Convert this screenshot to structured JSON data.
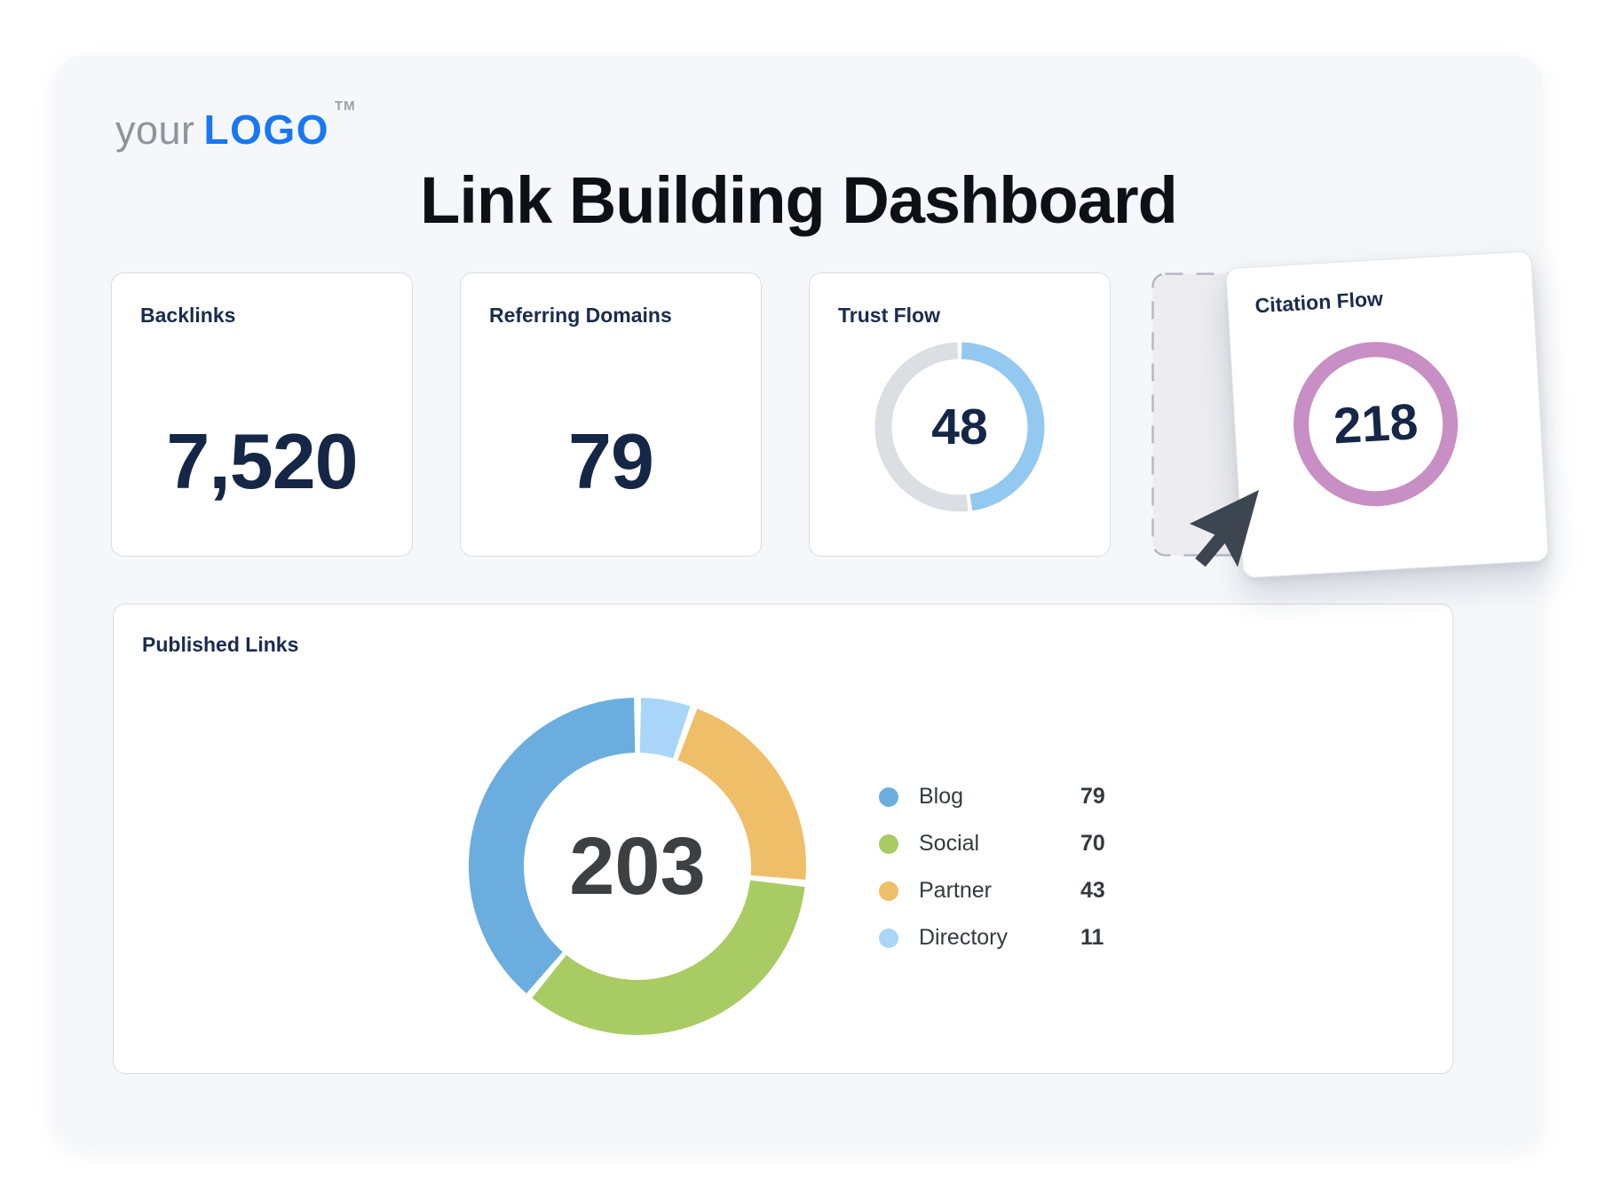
{
  "logo": {
    "prefix": "your",
    "name": "LOGO",
    "trademark": "TM"
  },
  "header": {
    "title": "Link Building Dashboard"
  },
  "stats": {
    "backlinks": {
      "label": "Backlinks",
      "value": "7,520"
    },
    "referring": {
      "label": "Referring Domains",
      "value": "79"
    },
    "trust": {
      "label": "Trust Flow",
      "value": 48,
      "max": 100,
      "arc_color": "#93c8f1",
      "track_color": "#dbdee3"
    },
    "citation": {
      "label": "Citation Flow",
      "value": "218",
      "ring_color": "#c78fc5"
    }
  },
  "published": {
    "label": "Published Links",
    "total": "203",
    "chart_data": {
      "type": "pie",
      "title": "Published Links",
      "center_total": 203,
      "legend_position": "right",
      "series": [
        {
          "name": "Blog",
          "value": 79,
          "color": "#6badde"
        },
        {
          "name": "Social",
          "value": 70,
          "color": "#a9cb64"
        },
        {
          "name": "Partner",
          "value": 43,
          "color": "#efbe68"
        },
        {
          "name": "Directory",
          "value": 11,
          "color": "#a9d6f8"
        }
      ]
    }
  },
  "colors": {
    "panel_bg": "#f6f7fa",
    "card_border": "#d9dce3",
    "label_navy": "#1a2b4d",
    "value_navy": "#152647",
    "logo_blue": "#1877f3",
    "placeholder_fill": "#ededf0",
    "placeholder_dash": "#b5b9c2",
    "cursor": "#3d4550"
  }
}
